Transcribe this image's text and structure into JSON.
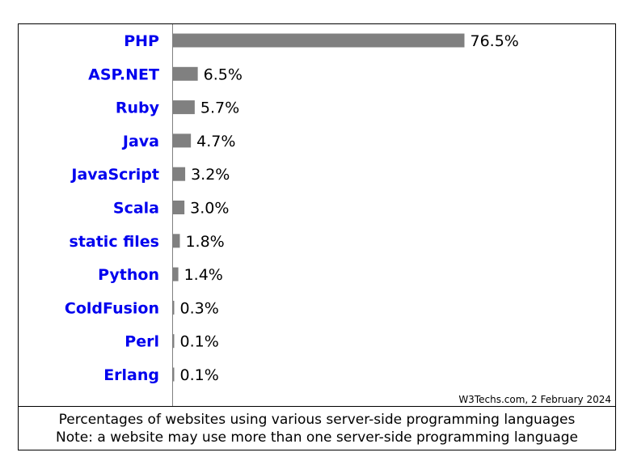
{
  "chart_data": {
    "type": "bar",
    "orientation": "horizontal",
    "categories": [
      "PHP",
      "ASP.NET",
      "Ruby",
      "Java",
      "JavaScript",
      "Scala",
      "static files",
      "Python",
      "ColdFusion",
      "Perl",
      "Erlang"
    ],
    "values": [
      76.5,
      6.5,
      5.7,
      4.7,
      3.2,
      3.0,
      1.8,
      1.4,
      0.3,
      0.1,
      0.1
    ],
    "value_labels": [
      "76.5%",
      "6.5%",
      "5.7%",
      "4.7%",
      "3.2%",
      "3.0%",
      "1.8%",
      "1.4%",
      "0.3%",
      "0.1%",
      "0.1%"
    ],
    "unit": "%",
    "xlim": [
      0,
      100
    ],
    "grid": false,
    "bar_color": "#808080",
    "label_color": "#0000ee",
    "credit": "W3Techs.com, 2 February 2024",
    "caption": [
      "Percentages of websites using various server-side programming languages",
      "Note: a website may use more than one server-side programming language"
    ]
  }
}
